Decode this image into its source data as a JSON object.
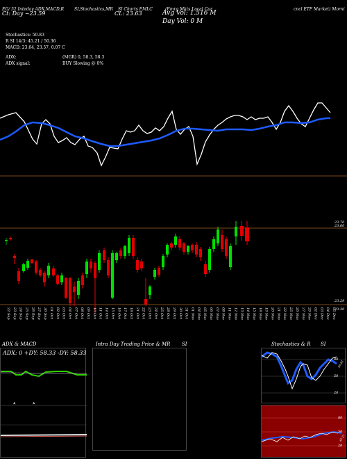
{
  "header": {
    "line1_a": "EG/ 52 Inteday ADX,MACD,R",
    "line1_b": "SI,Stochastics,MR",
    "line1_c": "SI Charts EMLC",
    "line1_d": "(Emrg Mkts Local Cur",
    "line1_e": "cncl ETF Market) Morni",
    "line2_a": "Ct:   Day ~23.59",
    "line2_b": "CL: 23.63",
    "avg_vol": "Avg Vol: 1.516  M",
    "day_vol": "Day Vol: 0   M",
    "stoch": "Stochastics: 50.83",
    "rsi": "R          SI 14/3: 45.21 / 50.36",
    "macd": "MACD: 23.64,  23.57,  0.07 C",
    "adx_l": "ADX:",
    "adx_r": "(MGR) 0,  58.3,  58.3",
    "adxsig_l": "ADX  signal:",
    "adxsig_r": "BUY Slowing @ 0%"
  },
  "price_labels": {
    "top_a": "23.70",
    "top_b": "23.60",
    "bottom": "23.29",
    "bottom2": "23.30"
  },
  "x_labels": [
    "22 Sep",
    "23 Sep",
    "24 Sep",
    "25 Sep",
    "26 Sep",
    "27 Sep",
    "30 Sep",
    "01 Oct",
    "02 Oct",
    "03 Oct",
    "04 Oct",
    "07 Oct",
    "08 Oct",
    "09 Oct",
    "10 Oct",
    "11 Oct",
    "14 Oct",
    "15 Oct",
    "16 Oct",
    "17 Oct",
    "18 Oct",
    "21 Oct",
    "22 Oct",
    "23 Oct",
    "24 Oct",
    "25 Oct",
    "28 Oct",
    "29 Oct",
    "30 Oct",
    "31 Oct",
    "01 Nov",
    "04 Nov",
    "05 Nov",
    "06 Nov",
    "07 Nov",
    "08 Nov",
    "11 Nov",
    "12 Nov",
    "13 Nov",
    "14 Nov",
    "15 Nov",
    "18 Nov",
    "19 Nov",
    "20 Nov",
    "21 Nov",
    "22 Nov",
    "25 Nov",
    "26 Nov",
    "27 Nov",
    "29 Nov",
    "02 Dec",
    "03 Dec",
    "04 Dec",
    "05 Dec"
  ],
  "panels": {
    "adx_title": "ADX  & MACD",
    "adx_values": "ADX: 0   +DY: 58.33  -DY: 58.33",
    "intra_title": "Intra  Day Trading Price  & MR",
    "intra_title2": "SI",
    "stoch_title": "Stochastics & R",
    "stoch_title2": "SI",
    "stoch_ticks": [
      "80",
      "50",
      "20"
    ],
    "rsi_ticks": [
      "80",
      "50",
      "20"
    ],
    "stoch_value": "50.83",
    "rsi_value": "45.21"
  },
  "colors": {
    "bull": "#00e000",
    "bear": "#e00000",
    "ema": "#1e5bff",
    "price_line": "#ffffff",
    "rsi_bg": "#8b0000",
    "adx_green": "#2fd000"
  }
}
